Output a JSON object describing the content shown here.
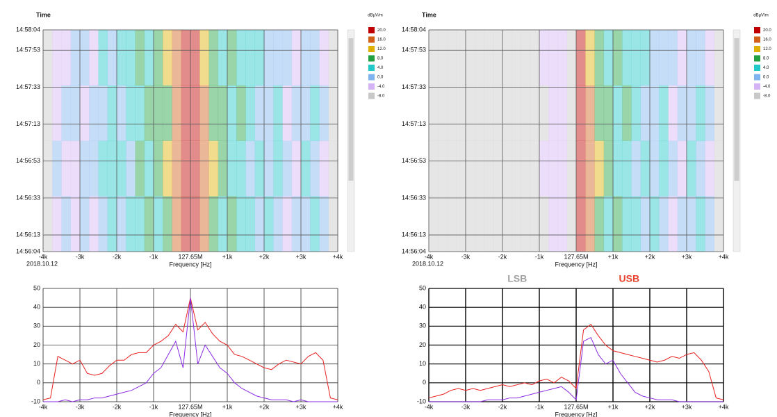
{
  "chart_data": [
    {
      "type": "heatmap",
      "y_label": "Time",
      "date": "2018.10.12",
      "x_label": "Frequency [Hz]",
      "colorbar_label": "dBµV/m",
      "xlim": [
        -4000,
        4000
      ],
      "xticks": [
        {
          "value": -4000,
          "label": "-4k"
        },
        {
          "value": -3000,
          "label": "-3k"
        },
        {
          "value": -2000,
          "label": "-2k"
        },
        {
          "value": -1000,
          "label": "-1k"
        },
        {
          "value": 0,
          "label": "127.65M"
        },
        {
          "value": 1000,
          "label": "+1k"
        },
        {
          "value": 2000,
          "label": "+2k"
        },
        {
          "value": 3000,
          "label": "+3k"
        },
        {
          "value": 4000,
          "label": "+4k"
        }
      ],
      "ylim": [
        53764,
        53884
      ],
      "yticks": [
        {
          "value": 53884,
          "label": "14:58:04"
        },
        {
          "value": 53873,
          "label": "14:57:53"
        },
        {
          "value": 53853,
          "label": "14:57:33"
        },
        {
          "value": 53833,
          "label": "14:57:13"
        },
        {
          "value": 53813,
          "label": "14:56:53"
        },
        {
          "value": 53793,
          "label": "14:56:33"
        },
        {
          "value": 53773,
          "label": "14:56:13"
        },
        {
          "value": 53764,
          "label": "14:56:04"
        }
      ],
      "xbins": [
        -4000,
        -3750,
        -3500,
        -3250,
        -3000,
        -2750,
        -2500,
        -2250,
        -2000,
        -1750,
        -1500,
        -1250,
        -1000,
        -750,
        -500,
        -250,
        0,
        250,
        500,
        750,
        1000,
        1250,
        1500,
        1750,
        2000,
        2250,
        2500,
        2750,
        3000,
        3250,
        3500,
        3750,
        4000
      ],
      "ybins": [
        53764,
        53794,
        53824,
        53854,
        53884
      ],
      "values": [
        [
          -8,
          -4,
          0,
          -4,
          0,
          -4,
          0,
          4,
          0,
          4,
          4,
          8,
          4,
          8,
          16,
          20,
          20,
          16,
          8,
          4,
          8,
          4,
          4,
          0,
          4,
          0,
          -4,
          0,
          0,
          4,
          0,
          -8
        ],
        [
          -8,
          0,
          -4,
          -4,
          0,
          0,
          4,
          4,
          4,
          0,
          8,
          4,
          8,
          12,
          16,
          20,
          20,
          16,
          12,
          8,
          4,
          4,
          0,
          4,
          0,
          4,
          0,
          -4,
          4,
          0,
          -4,
          -8
        ],
        [
          -8,
          -4,
          0,
          0,
          -4,
          0,
          0,
          4,
          0,
          4,
          4,
          8,
          8,
          8,
          16,
          20,
          20,
          16,
          8,
          8,
          4,
          8,
          4,
          0,
          0,
          4,
          -4,
          0,
          0,
          4,
          0,
          -8
        ],
        [
          -8,
          -4,
          -4,
          0,
          0,
          -4,
          4,
          0,
          4,
          4,
          8,
          4,
          8,
          12,
          16,
          20,
          20,
          12,
          8,
          4,
          8,
          4,
          4,
          4,
          0,
          0,
          0,
          -4,
          0,
          0,
          -4,
          -8
        ]
      ],
      "colorscale": [
        {
          "value": 20,
          "label": "20.0",
          "color": "#c00000"
        },
        {
          "value": 16,
          "label": "16.0",
          "color": "#d0601a"
        },
        {
          "value": 12,
          "label": "12.0",
          "color": "#e0b000"
        },
        {
          "value": 8,
          "label": "8.0",
          "color": "#20a040"
        },
        {
          "value": 4,
          "label": "4.0",
          "color": "#20c8c8"
        },
        {
          "value": 0,
          "label": "0.0",
          "color": "#80b4f0"
        },
        {
          "value": -4,
          "label": "-4.0",
          "color": "#d4b4f4"
        },
        {
          "value": -8,
          "label": "-8.0",
          "color": "#c8c8c8"
        }
      ]
    },
    {
      "type": "heatmap",
      "y_label": "Time",
      "date": "2018.10.12",
      "x_label": "Frequency [Hz]",
      "colorbar_label": "dBµV/m",
      "xlim": [
        -4000,
        4000
      ],
      "xticks": [
        {
          "value": -4000,
          "label": "-4k"
        },
        {
          "value": -3000,
          "label": "-3k"
        },
        {
          "value": -2000,
          "label": "-2k"
        },
        {
          "value": -1000,
          "label": "-1k"
        },
        {
          "value": 0,
          "label": "127.65M"
        },
        {
          "value": 1000,
          "label": "+1k"
        },
        {
          "value": 2000,
          "label": "+2k"
        },
        {
          "value": 3000,
          "label": "+3k"
        },
        {
          "value": 4000,
          "label": "+4k"
        }
      ],
      "ylim": [
        53764,
        53884
      ],
      "yticks": [
        {
          "value": 53884,
          "label": "14:58:04"
        },
        {
          "value": 53873,
          "label": "14:57:53"
        },
        {
          "value": 53853,
          "label": "14:57:33"
        },
        {
          "value": 53833,
          "label": "14:57:13"
        },
        {
          "value": 53813,
          "label": "14:56:53"
        },
        {
          "value": 53793,
          "label": "14:56:33"
        },
        {
          "value": 53773,
          "label": "14:56:13"
        },
        {
          "value": 53764,
          "label": "14:56:04"
        }
      ],
      "xbins": [
        -4000,
        -3750,
        -3500,
        -3250,
        -3000,
        -2750,
        -2500,
        -2250,
        -2000,
        -1750,
        -1500,
        -1250,
        -1000,
        -750,
        -500,
        -250,
        0,
        250,
        500,
        750,
        1000,
        1250,
        1500,
        1750,
        2000,
        2250,
        2500,
        2750,
        3000,
        3250,
        3500,
        3750,
        4000
      ],
      "ybins": [
        53764,
        53794,
        53824,
        53854,
        53884
      ],
      "values": [
        [
          -8,
          -8,
          -8,
          -8,
          -8,
          -8,
          -8,
          -8,
          -8,
          -8,
          -8,
          -8,
          -8,
          -4,
          -4,
          -8,
          20,
          16,
          8,
          4,
          8,
          4,
          4,
          0,
          4,
          0,
          -4,
          0,
          0,
          4,
          0,
          -8
        ],
        [
          -8,
          -8,
          -8,
          -8,
          -8,
          -8,
          -8,
          -8,
          -8,
          -8,
          -8,
          -8,
          -4,
          -4,
          -4,
          -8,
          20,
          16,
          12,
          8,
          4,
          4,
          0,
          4,
          0,
          4,
          0,
          -4,
          4,
          0,
          -4,
          -8
        ],
        [
          -8,
          -8,
          -8,
          -8,
          -8,
          -8,
          -8,
          -8,
          -8,
          -8,
          -8,
          -8,
          -8,
          -4,
          -4,
          -8,
          20,
          16,
          8,
          8,
          4,
          8,
          4,
          0,
          0,
          4,
          -4,
          0,
          0,
          4,
          0,
          -8
        ],
        [
          -8,
          -8,
          -8,
          -8,
          -8,
          -8,
          -8,
          -8,
          -8,
          -8,
          -8,
          -8,
          -4,
          -4,
          -4,
          -8,
          20,
          12,
          8,
          4,
          8,
          4,
          4,
          4,
          0,
          0,
          0,
          -4,
          0,
          0,
          -4,
          -8
        ]
      ],
      "colorscale": [
        {
          "value": 20,
          "label": "20.0",
          "color": "#c00000"
        },
        {
          "value": 16,
          "label": "16.0",
          "color": "#d0601a"
        },
        {
          "value": 12,
          "label": "12.0",
          "color": "#e0b000"
        },
        {
          "value": 8,
          "label": "8.0",
          "color": "#20a040"
        },
        {
          "value": 4,
          "label": "4.0",
          "color": "#20c8c8"
        },
        {
          "value": 0,
          "label": "0.0",
          "color": "#80b4f0"
        },
        {
          "value": -4,
          "label": "-4.0",
          "color": "#d4b4f4"
        },
        {
          "value": -8,
          "label": "-8.0",
          "color": "#c8c8c8"
        }
      ]
    },
    {
      "type": "line",
      "x_label": "Frequency [Hz]",
      "xlim": [
        -4000,
        4000
      ],
      "xticks": [
        {
          "value": -4000,
          "label": "-4k"
        },
        {
          "value": -3000,
          "label": "-3k"
        },
        {
          "value": -2000,
          "label": "-2k"
        },
        {
          "value": -1000,
          "label": "-1k"
        },
        {
          "value": 0,
          "label": "127.65M"
        },
        {
          "value": 1000,
          "label": "+1k"
        },
        {
          "value": 2000,
          "label": "+2k"
        },
        {
          "value": 3000,
          "label": "+3k"
        },
        {
          "value": 4000,
          "label": "+4k"
        }
      ],
      "ylim": [
        -10,
        50
      ],
      "yticks": [
        -10,
        0,
        10,
        20,
        30,
        40,
        50
      ],
      "grid": true,
      "grid_color": "#303030",
      "x": [
        -4000,
        -3800,
        -3600,
        -3400,
        -3200,
        -3000,
        -2800,
        -2600,
        -2400,
        -2200,
        -2000,
        -1800,
        -1600,
        -1400,
        -1200,
        -1000,
        -800,
        -600,
        -400,
        -200,
        0,
        200,
        400,
        600,
        800,
        1000,
        1200,
        1400,
        1600,
        1800,
        2000,
        2200,
        2400,
        2600,
        2800,
        3000,
        3200,
        3400,
        3600,
        3800,
        4000
      ],
      "series": [
        {
          "color": "#e82020",
          "values": [
            -9,
            -8,
            14,
            12,
            10,
            12,
            5,
            4,
            5,
            9,
            12,
            12,
            15,
            16,
            16,
            20,
            22,
            25,
            31,
            27,
            45,
            28,
            32,
            26,
            22,
            20,
            15,
            14,
            12,
            10,
            8,
            7,
            10,
            12,
            11,
            10,
            14,
            16,
            12,
            -8,
            -9
          ]
        },
        {
          "color": "#8a2be2",
          "values": [
            -10,
            -10,
            -10,
            -9,
            -10,
            -9,
            -9,
            -8,
            -8,
            -7,
            -6,
            -5,
            -4,
            -2,
            0,
            5,
            8,
            15,
            22,
            8,
            45,
            10,
            20,
            14,
            8,
            5,
            0,
            -3,
            -5,
            -7,
            -8,
            -9,
            -9,
            -9,
            -10,
            -9,
            -10,
            -10,
            -10,
            -10,
            -10
          ]
        }
      ]
    },
    {
      "type": "line",
      "x_label": "Frequency [Hz]",
      "annotations": [
        {
          "text": "LSB",
          "color": "#a0a0a0"
        },
        {
          "text": "USB",
          "color": "#e8402a"
        }
      ],
      "xlim": [
        -4000,
        4000
      ],
      "xticks": [
        {
          "value": -4000,
          "label": "-4k"
        },
        {
          "value": -3000,
          "label": "-3k"
        },
        {
          "value": -2000,
          "label": "-2k"
        },
        {
          "value": -1000,
          "label": "-1k"
        },
        {
          "value": 0,
          "label": "127.65M"
        },
        {
          "value": 1000,
          "label": "+1k"
        },
        {
          "value": 2000,
          "label": "+2k"
        },
        {
          "value": 3000,
          "label": "+3k"
        },
        {
          "value": 4000,
          "label": "+4k"
        }
      ],
      "ylim": [
        -10,
        50
      ],
      "yticks": [
        -10,
        0,
        10,
        20,
        30,
        40,
        50
      ],
      "grid": true,
      "grid_color": "#000000",
      "x": [
        -4000,
        -3800,
        -3600,
        -3400,
        -3200,
        -3000,
        -2800,
        -2600,
        -2400,
        -2200,
        -2000,
        -1800,
        -1600,
        -1400,
        -1200,
        -1000,
        -800,
        -600,
        -400,
        -200,
        0,
        200,
        400,
        600,
        800,
        1000,
        1200,
        1400,
        1600,
        1800,
        2000,
        2200,
        2400,
        2600,
        2800,
        3000,
        3200,
        3400,
        3600,
        3800,
        4000
      ],
      "series": [
        {
          "color": "#e82020",
          "values": [
            -8,
            -7,
            -6,
            -4,
            -3,
            -4,
            -3,
            -4,
            -3,
            -2,
            -1,
            -2,
            -1,
            0,
            -1,
            1,
            2,
            0,
            3,
            1,
            -3,
            28,
            31,
            25,
            20,
            17,
            16,
            15,
            14,
            13,
            12,
            11,
            12,
            14,
            13,
            15,
            16,
            12,
            6,
            -8,
            -9
          ]
        },
        {
          "color": "#8a2be2",
          "values": [
            -10,
            -10,
            -10,
            -10,
            -10,
            -10,
            -10,
            -10,
            -9,
            -9,
            -9,
            -8,
            -8,
            -7,
            -6,
            -5,
            -4,
            -3,
            -2,
            -5,
            -9,
            22,
            24,
            15,
            10,
            12,
            5,
            0,
            -5,
            -7,
            -8,
            -9,
            -9,
            -9,
            -10,
            -10,
            -10,
            -10,
            -10,
            -10,
            -10
          ]
        }
      ]
    }
  ]
}
